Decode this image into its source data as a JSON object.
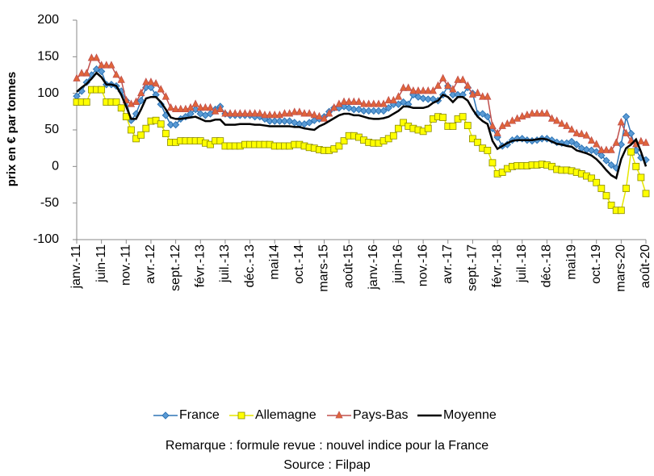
{
  "chart_data": {
    "type": "line",
    "y_label": "prix en € par tonnes",
    "annotations": [
      "Remarque : formule revue : nouvel indice pour la France",
      "Source : Filpap"
    ],
    "categories": [
      "janv.-11",
      null,
      null,
      null,
      null,
      "juin-11",
      null,
      null,
      null,
      null,
      "nov.-11",
      null,
      null,
      null,
      null,
      "avr.-12",
      null,
      null,
      null,
      null,
      "sept.-12",
      null,
      null,
      null,
      null,
      "févr.-13",
      null,
      null,
      null,
      null,
      "juil.-13",
      null,
      null,
      null,
      null,
      "déc.-13",
      null,
      null,
      null,
      null,
      "mai14",
      null,
      null,
      null,
      null,
      "oct.-14",
      null,
      null,
      null,
      null,
      "mars-15",
      null,
      null,
      null,
      null,
      "août-15",
      null,
      null,
      null,
      null,
      "janv.-16",
      null,
      null,
      null,
      null,
      "juin-16",
      null,
      null,
      null,
      null,
      "nov.-16",
      null,
      null,
      null,
      null,
      "avr.-17",
      null,
      null,
      null,
      null,
      "sept.-17",
      null,
      null,
      null,
      null,
      "févr.-18",
      null,
      null,
      null,
      null,
      "juil.-18",
      null,
      null,
      null,
      null,
      "déc.-18",
      null,
      null,
      null,
      null,
      "mai19",
      null,
      null,
      null,
      null,
      "oct.-19",
      null,
      null,
      null,
      null,
      "mars-20",
      null,
      null,
      null,
      null,
      "août-20"
    ],
    "series": [
      {
        "name": "France",
        "color": "#2e75b6",
        "marker": "diamond",
        "values": [
          96,
          103,
          115,
          125,
          133,
          130,
          112,
          112,
          110,
          103,
          90,
          63,
          72,
          90,
          108,
          108,
          98,
          85,
          70,
          57,
          57,
          65,
          68,
          72,
          78,
          72,
          70,
          72,
          78,
          82,
          72,
          70,
          70,
          70,
          70,
          70,
          68,
          68,
          65,
          62,
          62,
          62,
          62,
          62,
          60,
          58,
          58,
          60,
          63,
          65,
          68,
          75,
          80,
          80,
          82,
          80,
          78,
          78,
          76,
          76,
          76,
          76,
          76,
          80,
          85,
          85,
          88,
          85,
          98,
          95,
          93,
          92,
          92,
          90,
          98,
          110,
          98,
          98,
          98,
          108,
          100,
          72,
          72,
          68,
          52,
          40,
          28,
          30,
          36,
          38,
          38,
          36,
          35,
          36,
          38,
          38,
          36,
          33,
          32,
          32,
          34,
          30,
          25,
          23,
          22,
          20,
          15,
          8,
          2,
          -2,
          30,
          68,
          45,
          22,
          12,
          9
        ]
      },
      {
        "name": "Allemagne",
        "color": "#ffff00",
        "marker": "square",
        "values": [
          88,
          88,
          88,
          105,
          105,
          105,
          88,
          88,
          88,
          80,
          68,
          50,
          38,
          43,
          52,
          62,
          63,
          58,
          45,
          33,
          33,
          35,
          35,
          35,
          35,
          35,
          32,
          30,
          35,
          35,
          28,
          28,
          28,
          28,
          30,
          30,
          30,
          30,
          30,
          30,
          28,
          28,
          28,
          28,
          30,
          30,
          28,
          26,
          25,
          23,
          22,
          22,
          24,
          28,
          35,
          42,
          42,
          40,
          36,
          33,
          32,
          32,
          35,
          38,
          42,
          52,
          60,
          55,
          52,
          50,
          48,
          52,
          65,
          68,
          67,
          55,
          55,
          65,
          68,
          56,
          38,
          33,
          25,
          22,
          5,
          -10,
          -8,
          -3,
          0,
          1,
          1,
          1,
          2,
          2,
          3,
          2,
          0,
          -4,
          -5,
          -5,
          -6,
          -8,
          -10,
          -13,
          -16,
          -22,
          -30,
          -40,
          -53,
          -60,
          -60,
          -30,
          20,
          0,
          -15,
          -37
        ]
      },
      {
        "name": "Pays-Bas",
        "color": "#c0504d",
        "marker": "triangle",
        "values": [
          120,
          127,
          127,
          148,
          148,
          138,
          138,
          138,
          125,
          118,
          90,
          85,
          88,
          100,
          115,
          115,
          113,
          105,
          95,
          80,
          78,
          78,
          78,
          80,
          85,
          80,
          80,
          80,
          75,
          78,
          72,
          72,
          72,
          72,
          72,
          72,
          72,
          72,
          70,
          70,
          70,
          70,
          72,
          72,
          74,
          74,
          72,
          72,
          70,
          68,
          65,
          72,
          80,
          85,
          88,
          88,
          88,
          88,
          85,
          85,
          85,
          85,
          85,
          90,
          90,
          95,
          107,
          107,
          103,
          103,
          103,
          103,
          103,
          110,
          120,
          110,
          105,
          118,
          118,
          110,
          98,
          100,
          95,
          95,
          55,
          45,
          55,
          58,
          62,
          65,
          68,
          70,
          72,
          72,
          72,
          72,
          65,
          62,
          58,
          55,
          50,
          45,
          44,
          42,
          35,
          30,
          22,
          22,
          22,
          32,
          60,
          45,
          35,
          30,
          34,
          32
        ]
      },
      {
        "name": "Moyenne",
        "color": "#000000",
        "marker": "none",
        "values": [
          102,
          108,
          113,
          120,
          128,
          122,
          112,
          112,
          110,
          98,
          82,
          65,
          65,
          78,
          93,
          95,
          95,
          88,
          78,
          67,
          65,
          65,
          66,
          67,
          68,
          65,
          62,
          62,
          64,
          64,
          57,
          57,
          57,
          58,
          58,
          58,
          57,
          57,
          56,
          55,
          55,
          55,
          55,
          55,
          54,
          54,
          52,
          51,
          50,
          55,
          58,
          62,
          66,
          70,
          72,
          72,
          70,
          70,
          68,
          66,
          65,
          65,
          66,
          68,
          72,
          76,
          82,
          82,
          80,
          80,
          80,
          82,
          87,
          90,
          98,
          95,
          88,
          95,
          95,
          90,
          78,
          68,
          62,
          58,
          35,
          24,
          28,
          32,
          35,
          36,
          36,
          36,
          36,
          37,
          38,
          37,
          34,
          31,
          30,
          28,
          27,
          22,
          20,
          18,
          15,
          10,
          3,
          -5,
          -12,
          -16,
          10,
          25,
          30,
          37,
          20,
          0
        ]
      }
    ],
    "ylim": [
      -100,
      200
    ],
    "yticks": [
      -100,
      -50,
      0,
      50,
      100,
      150,
      200
    ],
    "grid": false,
    "legend": "bottom"
  }
}
